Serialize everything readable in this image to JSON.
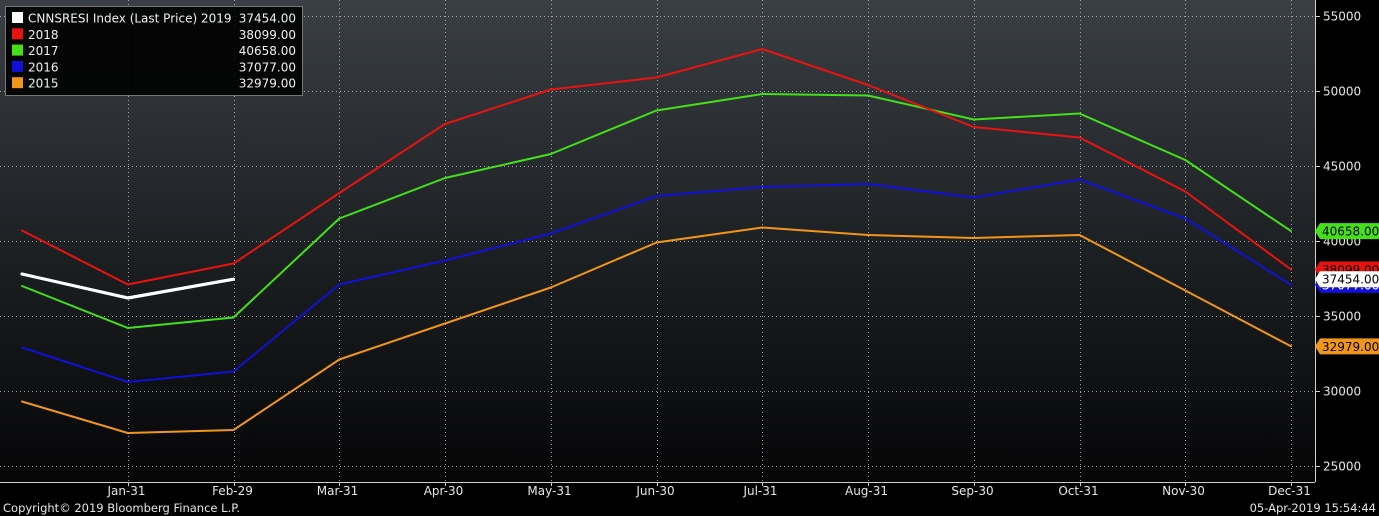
{
  "footer": {
    "copyright": "Copyright© 2019 Bloomberg Finance L.P.",
    "timestamp": "05-Apr-2019 15:54:44"
  },
  "chart_data": {
    "type": "line",
    "categories": [
      "Dec-31",
      "Jan-31",
      "Feb-29",
      "Mar-31",
      "Apr-30",
      "May-31",
      "Jun-30",
      "Jul-31",
      "Aug-31",
      "Sep-30",
      "Oct-31",
      "Nov-30",
      "Dec-31"
    ],
    "x_tick_labels": [
      "Jan-31",
      "Feb-29",
      "Mar-31",
      "Apr-30",
      "May-31",
      "Jun-30",
      "Jul-31",
      "Aug-31",
      "Sep-30",
      "Oct-31",
      "Nov-30",
      "Dec-31"
    ],
    "y_ticks": [
      25000,
      30000,
      35000,
      40000,
      45000,
      50000,
      55000
    ],
    "ylim": [
      24500,
      55500
    ],
    "y_axis_side": "right",
    "grid": true,
    "legend_position": "top-left",
    "series": [
      {
        "name": "CNNSRESI Index (Last Price) 2019",
        "last": "37454.00",
        "color": "#ffffff",
        "values": [
          37800,
          36200,
          37454,
          null,
          null,
          null,
          null,
          null,
          null,
          null,
          null,
          null,
          null
        ]
      },
      {
        "name": "2018",
        "last": "38099.00",
        "color": "#e8130f",
        "values": [
          40700,
          37100,
          38500,
          43200,
          47800,
          50100,
          50900,
          52800,
          50400,
          47600,
          46900,
          43300,
          38099
        ]
      },
      {
        "name": "2017",
        "last": "40658.00",
        "color": "#44e01a",
        "values": [
          37000,
          34200,
          34900,
          41500,
          44200,
          45800,
          48700,
          49800,
          49700,
          48100,
          48500,
          45400,
          40658
        ]
      },
      {
        "name": "2016",
        "last": "37077.00",
        "color": "#1010d8",
        "values": [
          32900,
          30600,
          31300,
          37100,
          38700,
          40500,
          43000,
          43600,
          43800,
          42900,
          44100,
          41500,
          37077
        ]
      },
      {
        "name": "2015",
        "last": "32979.00",
        "color": "#f0961a",
        "values": [
          29300,
          27200,
          27400,
          32100,
          34500,
          36900,
          39900,
          40900,
          40400,
          40200,
          40400,
          36700,
          32979
        ]
      }
    ],
    "axis_value_tags": [
      {
        "label": "40658.00",
        "bg": "#44e01a",
        "fg": "#000000",
        "value": 40658
      },
      {
        "label": "38099.00",
        "bg": "#e8130f",
        "fg": "#000000",
        "value": 38099
      },
      {
        "label": "37077.00",
        "bg": "#1010d8",
        "fg": "#ffffff",
        "value": 37077
      },
      {
        "label": "37454.00",
        "bg": "#ffffff",
        "fg": "#000000",
        "value": 37454
      },
      {
        "label": "32979.00",
        "bg": "#f0961a",
        "fg": "#000000",
        "value": 32979
      }
    ]
  }
}
